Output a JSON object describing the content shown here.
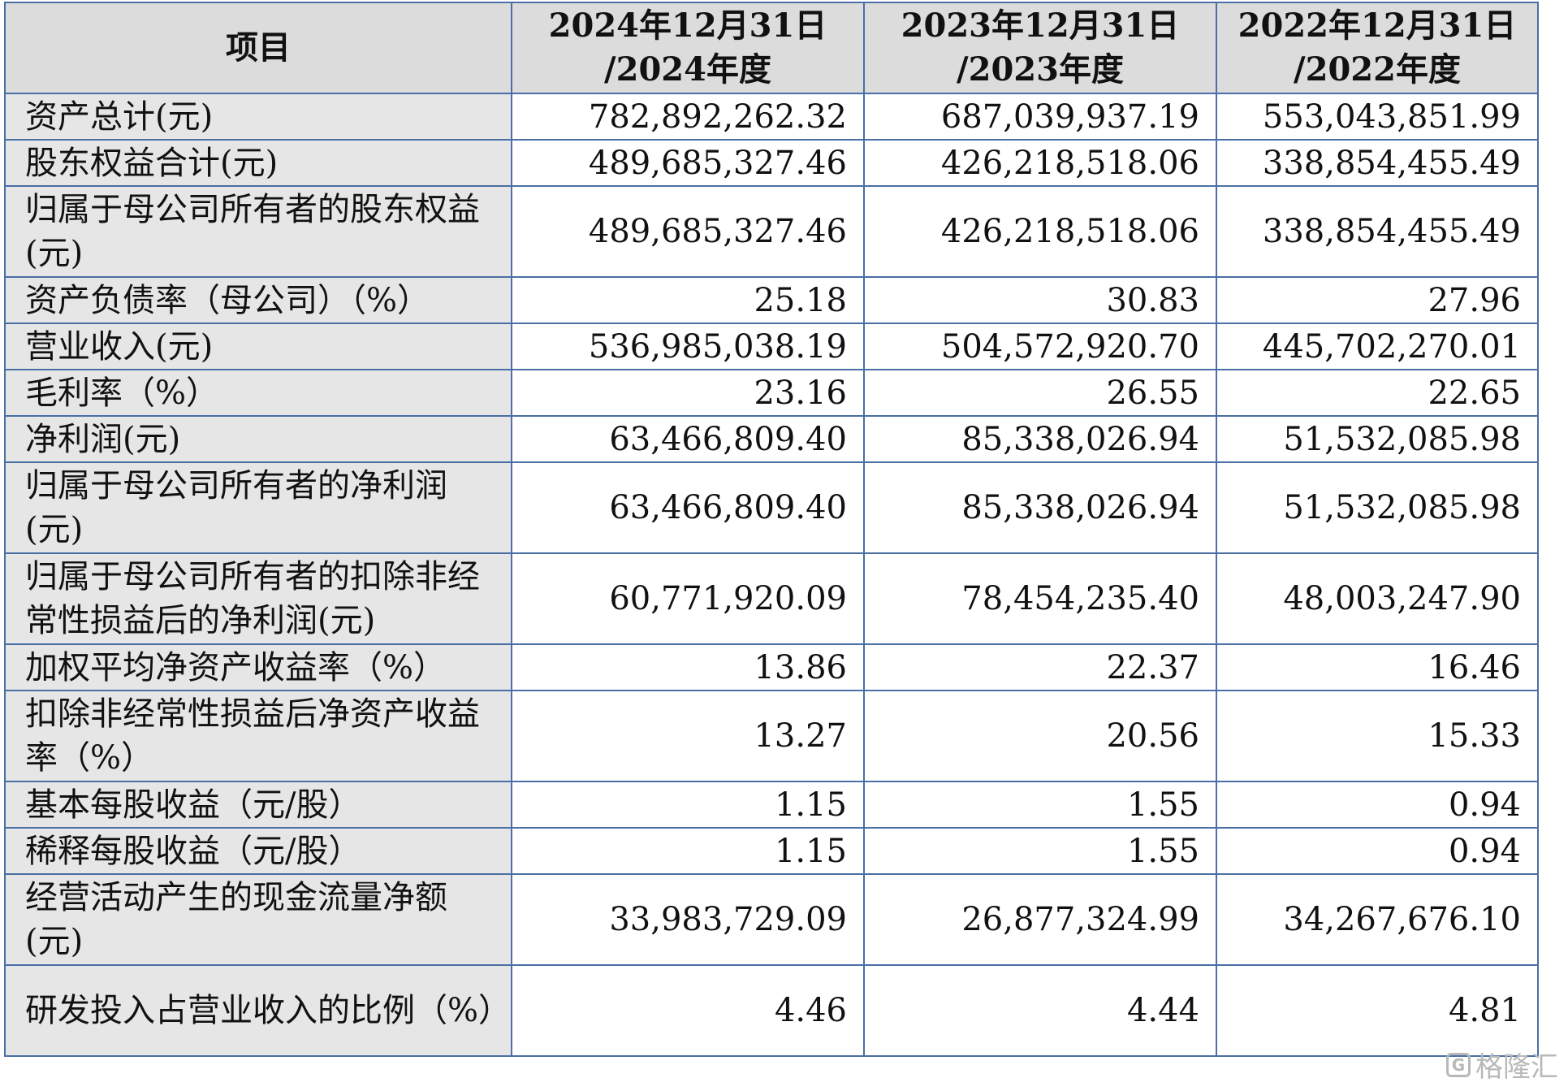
{
  "header": {
    "item": "项目",
    "cols": [
      {
        "line1": "2024年12月31日",
        "line2": "/2024年度"
      },
      {
        "line1": "2023年12月31日",
        "line2": "/2023年度"
      },
      {
        "line1": "2022年12月31日",
        "line2": "/2022年度"
      }
    ]
  },
  "rows": [
    {
      "label": "资产总计(元)",
      "v": [
        "782,892,262.32",
        "687,039,937.19",
        "553,043,851.99"
      ]
    },
    {
      "label": "股东权益合计(元)",
      "v": [
        "489,685,327.46",
        "426,218,518.06",
        "338,854,455.49"
      ]
    },
    {
      "label": "归属于母公司所有者的股东权益(元)",
      "v": [
        "489,685,327.46",
        "426,218,518.06",
        "338,854,455.49"
      ]
    },
    {
      "label": "资产负债率（母公司）（%）",
      "v": [
        "25.18",
        "30.83",
        "27.96"
      ]
    },
    {
      "label": "营业收入(元)",
      "v": [
        "536,985,038.19",
        "504,572,920.70",
        "445,702,270.01"
      ]
    },
    {
      "label": "毛利率（%）",
      "v": [
        "23.16",
        "26.55",
        "22.65"
      ]
    },
    {
      "label": "净利润(元)",
      "v": [
        "63,466,809.40",
        "85,338,026.94",
        "51,532,085.98"
      ]
    },
    {
      "label": "归属于母公司所有者的净利润(元)",
      "v": [
        "63,466,809.40",
        "85,338,026.94",
        "51,532,085.98"
      ]
    },
    {
      "label": "归属于母公司所有者的扣除非经常性损益后的净利润(元)",
      "v": [
        "60,771,920.09",
        "78,454,235.40",
        "48,003,247.90"
      ]
    },
    {
      "label": "加权平均净资产收益率（%）",
      "v": [
        "13.86",
        "22.37",
        "16.46"
      ]
    },
    {
      "label": "扣除非经常性损益后净资产收益率（%）",
      "v": [
        "13.27",
        "20.56",
        "15.33"
      ]
    },
    {
      "label": "基本每股收益（元/股）",
      "v": [
        "1.15",
        "1.55",
        "0.94"
      ]
    },
    {
      "label": "稀释每股收益（元/股）",
      "v": [
        "1.15",
        "1.55",
        "0.94"
      ]
    },
    {
      "label": "经营活动产生的现金流量净额(元)",
      "v": [
        "33,983,729.09",
        "26,877,324.99",
        "34,267,676.10"
      ]
    },
    {
      "label": "研发投入占营业收入的比例（%）",
      "v": [
        "4.46",
        "4.44",
        "4.81"
      ]
    }
  ],
  "watermark": {
    "text": "格隆汇",
    "icon": "gelonghui-logo-icon",
    "icon_glyph": "G"
  }
}
